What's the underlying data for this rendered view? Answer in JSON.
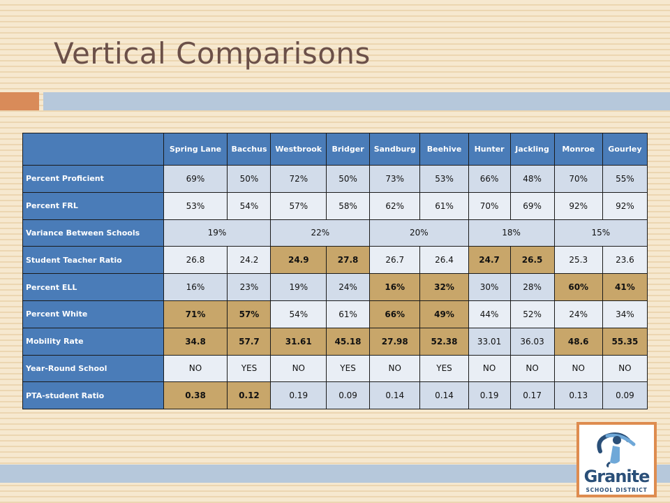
{
  "slide": {
    "title": "Vertical Comparisons",
    "colors": {
      "accent_orange": "#d98b59",
      "accent_blue": "#b6c8db",
      "header_blue": "#4a7cb8",
      "highlight_tan": "#c8a66a"
    }
  },
  "table": {
    "columns": [
      "Spring Lane",
      "Bacchus",
      "Westbrook",
      "Bridger",
      "Sandburg",
      "Beehive",
      "Hunter",
      "Jackling",
      "Monroe",
      "Gourley"
    ],
    "rows": [
      {
        "label": "Percent Proficient",
        "cells": [
          "69%",
          "50%",
          "72%",
          "50%",
          "73%",
          "53%",
          "66%",
          "48%",
          "70%",
          "55%"
        ],
        "highlight": [
          false,
          false,
          false,
          false,
          false,
          false,
          false,
          false,
          false,
          false
        ]
      },
      {
        "label": "Percent FRL",
        "cells": [
          "53%",
          "54%",
          "57%",
          "58%",
          "62%",
          "61%",
          "70%",
          "69%",
          "92%",
          "92%"
        ],
        "highlight": [
          false,
          false,
          false,
          false,
          false,
          false,
          false,
          false,
          false,
          false
        ]
      },
      {
        "label": "Variance Between Schools",
        "merged": [
          "19%",
          "22%",
          "20%",
          "18%",
          "15%"
        ]
      },
      {
        "label": "Student Teacher Ratio",
        "cells": [
          "26.8",
          "24.2",
          "24.9",
          "27.8",
          "26.7",
          "26.4",
          "24.7",
          "26.5",
          "25.3",
          "23.6"
        ],
        "highlight": [
          false,
          false,
          true,
          true,
          false,
          false,
          true,
          true,
          false,
          false
        ]
      },
      {
        "label": "Percent ELL",
        "cells": [
          "16%",
          "23%",
          "19%",
          "24%",
          "16%",
          "32%",
          "30%",
          "28%",
          "60%",
          "41%"
        ],
        "highlight": [
          false,
          false,
          false,
          false,
          true,
          true,
          false,
          false,
          true,
          true
        ]
      },
      {
        "label": "Percent White",
        "cells": [
          "71%",
          "57%",
          "54%",
          "61%",
          "66%",
          "49%",
          "44%",
          "52%",
          "24%",
          "34%"
        ],
        "highlight": [
          true,
          true,
          false,
          false,
          true,
          true,
          false,
          false,
          false,
          false
        ]
      },
      {
        "label": "Mobility Rate",
        "cells": [
          "34.8",
          "57.7",
          "31.61",
          "45.18",
          "27.98",
          "52.38",
          "33.01",
          "36.03",
          "48.6",
          "55.35"
        ],
        "highlight": [
          true,
          true,
          true,
          true,
          true,
          true,
          false,
          false,
          true,
          true
        ]
      },
      {
        "label": "Year-Round School",
        "cells": [
          "NO",
          "YES",
          "NO",
          "YES",
          "NO",
          "YES",
          "NO",
          "NO",
          "NO",
          "NO"
        ],
        "highlight": [
          false,
          false,
          false,
          false,
          false,
          false,
          false,
          false,
          false,
          false
        ]
      },
      {
        "label": "PTA-student Ratio",
        "cells": [
          "0.38",
          "0.12",
          "0.19",
          "0.09",
          "0.14",
          "0.14",
          "0.19",
          "0.17",
          "0.13",
          "0.09"
        ],
        "highlight": [
          true,
          true,
          false,
          false,
          false,
          false,
          false,
          false,
          false,
          false
        ]
      }
    ]
  },
  "logo": {
    "name": "Granite",
    "subtitle": "SCHOOL DISTRICT",
    "icon": "person-figure-icon"
  }
}
